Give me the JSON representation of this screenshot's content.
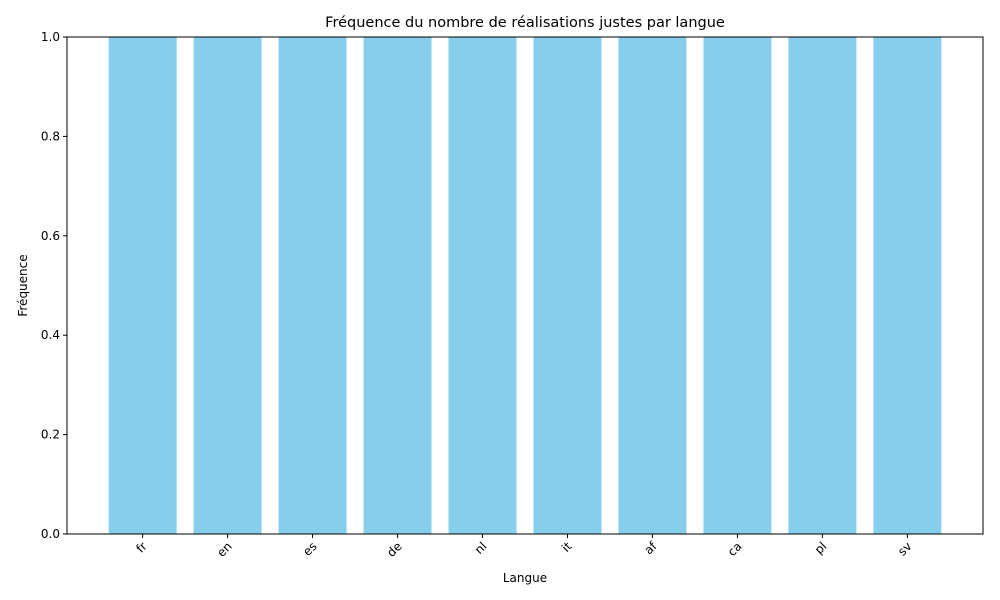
{
  "chart_data": {
    "type": "bar",
    "title": "Fréquence du nombre de réalisations justes par langue",
    "xlabel": "Langue",
    "ylabel": "Fréquence",
    "categories": [
      "fr",
      "en",
      "es",
      "de",
      "nl",
      "it",
      "af",
      "ca",
      "pl",
      "sv"
    ],
    "values": [
      1,
      1,
      1,
      1,
      1,
      1,
      1,
      1,
      1,
      1
    ],
    "ylim": [
      0,
      1.0
    ],
    "yticks": [
      "0.0",
      "0.2",
      "0.4",
      "0.6",
      "0.8",
      "1.0"
    ],
    "bar_color": "#87CEEB",
    "grid": false,
    "x_tick_rotation_deg": 45
  }
}
